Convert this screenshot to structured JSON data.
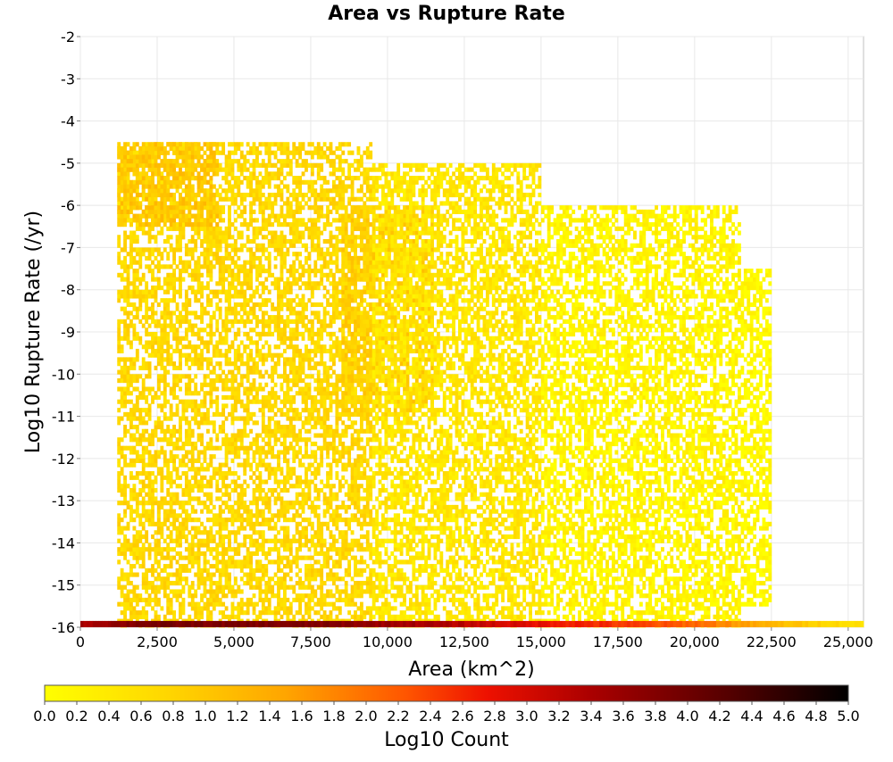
{
  "chart_data": {
    "type": "heatmap",
    "title": "Area vs Rupture Rate",
    "xlabel": "Area (km^2)",
    "ylabel": "Log10 Rupture Rate (/yr)",
    "xlim": [
      0,
      25500
    ],
    "ylim": [
      -16,
      -2
    ],
    "grid": true,
    "x_ticks": [
      "0",
      "2,500",
      "5,000",
      "7,500",
      "10,000",
      "12,500",
      "15,000",
      "17,500",
      "20,000",
      "22,500",
      "25,000"
    ],
    "x_tick_values": [
      0,
      2500,
      5000,
      7500,
      10000,
      12500,
      15000,
      17500,
      20000,
      22500,
      25000
    ],
    "y_ticks": [
      "-2",
      "-3",
      "-4",
      "-5",
      "-6",
      "-7",
      "-8",
      "-9",
      "-10",
      "-11",
      "-12",
      "-13",
      "-14",
      "-15",
      "-16"
    ],
    "y_tick_values": [
      -2,
      -3,
      -4,
      -5,
      -6,
      -7,
      -8,
      -9,
      -10,
      -11,
      -12,
      -13,
      -14,
      -15,
      -16
    ],
    "colorbar": {
      "label": "Log10 Count",
      "range": [
        0,
        5
      ],
      "ticks": [
        "0.0",
        "0.2",
        "0.4",
        "0.6",
        "0.8",
        "1.0",
        "1.2",
        "1.4",
        "1.6",
        "1.8",
        "2.0",
        "2.2",
        "2.4",
        "2.6",
        "2.8",
        "3.0",
        "3.2",
        "3.4",
        "3.6",
        "3.8",
        "4.0",
        "4.2",
        "4.4",
        "4.6",
        "4.8",
        "5.0"
      ],
      "colors": [
        "#ffff00",
        "#ffd700",
        "#ffa500",
        "#ff5500",
        "#ee1100",
        "#aa0000",
        "#550000",
        "#000000"
      ],
      "stops": [
        0,
        0.15,
        0.3,
        0.45,
        0.55,
        0.68,
        0.85,
        1.0
      ]
    },
    "density_regions": [
      {
        "x_range": [
          1200,
          9500
        ],
        "y_range": [
          -16,
          -4.5
        ],
        "log10_count": 0.7,
        "note": "main dense body"
      },
      {
        "x_range": [
          1200,
          4500
        ],
        "y_range": [
          -6.5,
          -4.5
        ],
        "log10_count": 1.0
      },
      {
        "x_range": [
          8500,
          11500
        ],
        "y_range": [
          -11,
          -6
        ],
        "log10_count": 0.85
      },
      {
        "x_range": [
          9500,
          15000
        ],
        "y_range": [
          -16,
          -5
        ],
        "log10_count": 0.45
      },
      {
        "x_range": [
          15000,
          21500
        ],
        "y_range": [
          -16,
          -6
        ],
        "log10_count": 0.2
      },
      {
        "x_range": [
          21500,
          22500
        ],
        "y_range": [
          -15.5,
          -7.5
        ],
        "log10_count": 0.1
      }
    ],
    "baseline_row": {
      "y": -16,
      "x_range": [
        0,
        25500
      ],
      "log10_count_profile": [
        {
          "x": 0,
          "v": 3.4
        },
        {
          "x": 2000,
          "v": 3.9
        },
        {
          "x": 8000,
          "v": 3.8
        },
        {
          "x": 12000,
          "v": 3.3
        },
        {
          "x": 15000,
          "v": 2.8
        },
        {
          "x": 20000,
          "v": 2.1
        },
        {
          "x": 22500,
          "v": 1.2
        },
        {
          "x": 25500,
          "v": 0.5
        }
      ]
    }
  }
}
